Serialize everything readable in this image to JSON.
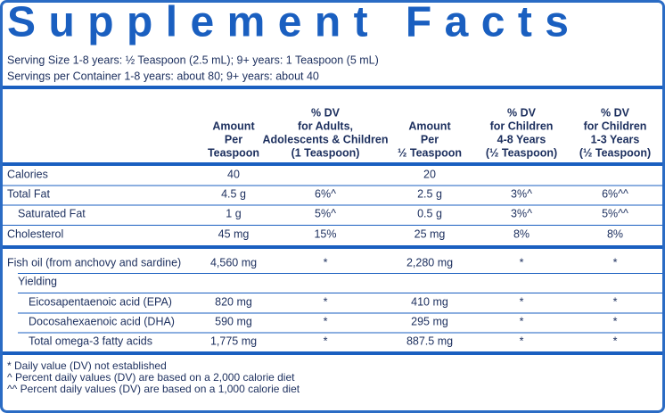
{
  "title": "Supplement Facts",
  "serving": [
    "Serving Size 1-8 years: ½ Teaspoon (2.5 mL); 9+ years: 1 Teaspoon (5 mL)",
    "Servings per Container 1-8 years: about 80; 9+ years: about 40"
  ],
  "table": {
    "headers": [
      [
        "Amount",
        "Per",
        "Teaspoon"
      ],
      [
        "% DV",
        "for Adults,",
        "Adolescents & Children",
        "(1 Teaspoon)"
      ],
      [
        "Amount",
        "Per",
        "½ Teaspoon"
      ],
      [
        "% DV",
        "for Children",
        "4-8 Years",
        "(½ Teaspoon)"
      ],
      [
        "% DV",
        "for Children",
        "1-3 Years",
        "(½ Teaspoon)"
      ]
    ],
    "rows": [
      [
        "Calories",
        "40",
        null,
        "20",
        null,
        null
      ],
      [
        "Total Fat",
        "4.5 g",
        "6%^",
        "2.5 g",
        "3%^",
        "6%^^"
      ],
      [
        "Saturated Fat",
        "1 g",
        "5%^",
        "0.5 g",
        "3%^",
        "5%^^"
      ],
      [
        "Cholesterol",
        "45 mg",
        "15%",
        "25 mg",
        "8%",
        "8%"
      ],
      [
        "Fish oil (from anchovy and sardine)",
        "4,560 mg",
        "*",
        "2,280 mg",
        "*",
        "*"
      ],
      [
        "Yielding",
        null,
        null,
        null,
        null,
        null
      ],
      [
        "Eicosapentaenoic acid (EPA)",
        "820 mg",
        "*",
        "410 mg",
        "*",
        "*"
      ],
      [
        "Docosahexaenoic acid (DHA)",
        "590 mg",
        "*",
        "295 mg",
        "*",
        "*"
      ],
      [
        "Total omega-3 fatty acids",
        "1,775 mg",
        "*",
        "887.5 mg",
        "*",
        "*"
      ]
    ]
  },
  "footnotes": [
    "* Daily value (DV) not established",
    "^ Percent daily values (DV) are based on a 2,000 calorie diet",
    "^^ Percent daily values (DV) are based on a 1,000 calorie diet"
  ]
}
